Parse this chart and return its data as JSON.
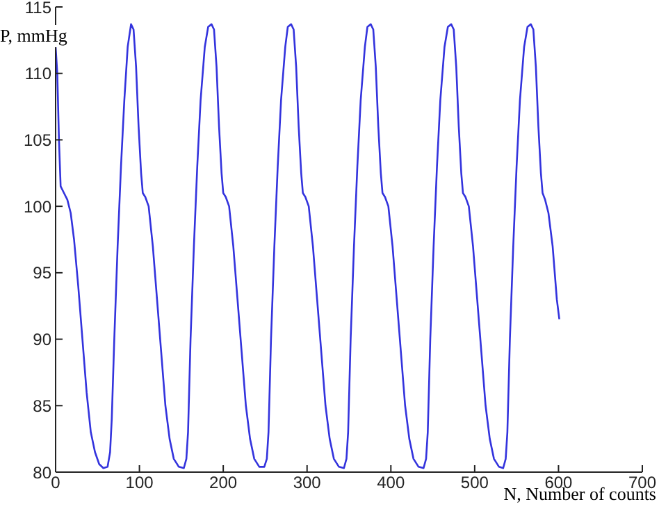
{
  "chart_data": {
    "type": "line",
    "xlabel": "N, Number of counts",
    "ylabel": "P, mmHg",
    "xlim": [
      0,
      700
    ],
    "xticks": [
      0,
      100,
      200,
      300,
      400,
      500,
      600,
      700
    ],
    "ylim": [
      80,
      115
    ],
    "yticks": [
      80,
      85,
      90,
      95,
      100,
      105,
      110,
      115
    ],
    "grid": false,
    "marker": "none",
    "line_style": "solid",
    "series": [
      {
        "color": "#3333dd",
        "x": [
          0,
          2,
          4,
          6,
          10,
          14,
          18,
          22,
          27,
          32,
          37,
          42,
          47,
          52,
          57,
          62,
          65,
          67,
          70,
          74,
          78,
          82,
          86,
          90,
          93,
          96,
          99,
          102,
          104,
          107,
          111,
          116,
          121,
          126,
          131,
          136,
          141,
          147,
          153,
          156,
          158,
          161,
          165,
          169,
          173,
          178,
          182,
          186,
          189,
          192,
          195,
          198,
          200,
          203,
          207,
          212,
          217,
          222,
          227,
          232,
          237,
          243,
          249,
          252,
          254,
          257,
          261,
          265,
          269,
          274,
          277,
          281,
          284,
          287,
          290,
          293,
          295,
          298,
          302,
          307,
          312,
          317,
          322,
          327,
          332,
          338,
          344,
          347,
          349,
          352,
          356,
          360,
          364,
          369,
          372,
          376,
          379,
          382,
          385,
          388,
          390,
          393,
          397,
          402,
          407,
          412,
          417,
          422,
          427,
          433,
          439,
          442,
          444,
          447,
          451,
          455,
          459,
          464,
          468,
          472,
          475,
          478,
          481,
          484,
          486,
          489,
          493,
          498,
          503,
          508,
          513,
          518,
          523,
          529,
          534,
          537,
          539,
          542,
          546,
          550,
          554,
          559,
          563,
          567,
          570,
          573,
          576,
          579,
          581,
          584,
          588,
          593,
          598,
          601
        ],
        "values": [
          112,
          110,
          105,
          101.5,
          101,
          100.5,
          99.5,
          97.5,
          94,
          90,
          86,
          83,
          81.5,
          80.6,
          80.3,
          80.4,
          81.5,
          84,
          90,
          97,
          103,
          108,
          112,
          113.7,
          113.3,
          110.5,
          106,
          102.5,
          101,
          100.7,
          100,
          97,
          93,
          89,
          85,
          82.5,
          81,
          80.4,
          80.3,
          81,
          83,
          90,
          97,
          103,
          108,
          112,
          113.5,
          113.7,
          113.3,
          110.5,
          106,
          102.5,
          101,
          100.7,
          100,
          97,
          93,
          89,
          85,
          82.5,
          81,
          80.4,
          80.4,
          81,
          83,
          90,
          97,
          103,
          108,
          112,
          113.5,
          113.7,
          113.3,
          110.5,
          106,
          102.5,
          101,
          100.7,
          100,
          97,
          93,
          89,
          85,
          82.5,
          81,
          80.4,
          80.3,
          81,
          83,
          90,
          97,
          103,
          108,
          112,
          113.5,
          113.7,
          113.3,
          110.5,
          106,
          102.5,
          101,
          100.7,
          100,
          97,
          93,
          89,
          85,
          82.5,
          81,
          80.4,
          80.3,
          81,
          83,
          90,
          97,
          103,
          108,
          112,
          113.5,
          113.7,
          113.3,
          110.5,
          106,
          102.5,
          101,
          100.7,
          100,
          97,
          93,
          89,
          85,
          82.5,
          81,
          80.4,
          80.3,
          81,
          83,
          90,
          97,
          103,
          108,
          112,
          113.5,
          113.7,
          113.3,
          110.5,
          106,
          102.5,
          101,
          100.5,
          99.5,
          97,
          93,
          91.5
        ]
      }
    ]
  }
}
